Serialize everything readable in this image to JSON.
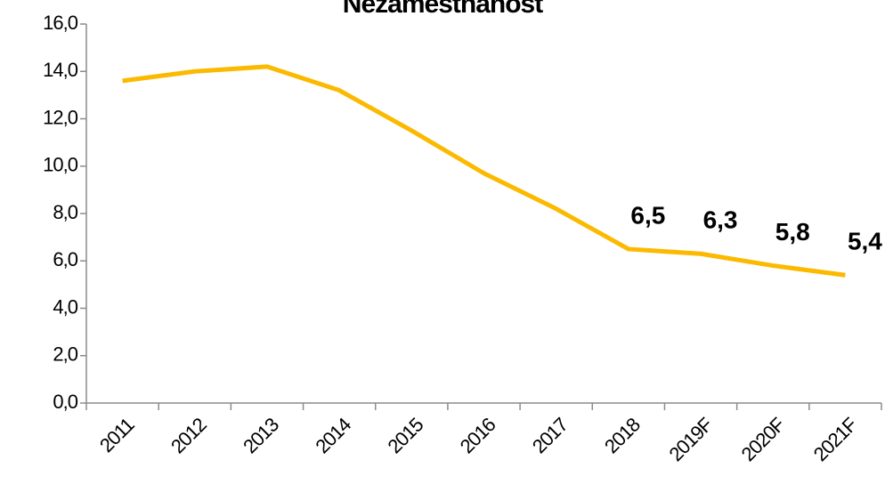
{
  "chart_data": {
    "type": "line",
    "title": "Nezamestnanost",
    "categories": [
      "2011",
      "2012",
      "2013",
      "2014",
      "2015",
      "2016",
      "2017",
      "2018",
      "2019F",
      "2020F",
      "2021F"
    ],
    "series": [
      {
        "name": "Nezamestnanost",
        "color": "#fbb900",
        "values": [
          13.6,
          14.0,
          14.2,
          13.2,
          11.5,
          9.7,
          8.2,
          6.5,
          6.3,
          5.8,
          5.4
        ],
        "value_labels": [
          null,
          null,
          null,
          null,
          null,
          null,
          null,
          "6,5",
          "6,3",
          "5,8",
          "5,4"
        ]
      }
    ],
    "ylim": [
      0,
      16
    ],
    "yticks": [
      {
        "value": 0,
        "label": "0,0"
      },
      {
        "value": 2,
        "label": "2,0"
      },
      {
        "value": 4,
        "label": "4,0"
      },
      {
        "value": 6,
        "label": "6,0"
      },
      {
        "value": 8,
        "label": "8,0"
      },
      {
        "value": 10,
        "label": "10,0"
      },
      {
        "value": 12,
        "label": "12,0"
      },
      {
        "value": 14,
        "label": "14,0"
      },
      {
        "value": 16,
        "label": "16,0"
      }
    ],
    "grid": false
  }
}
